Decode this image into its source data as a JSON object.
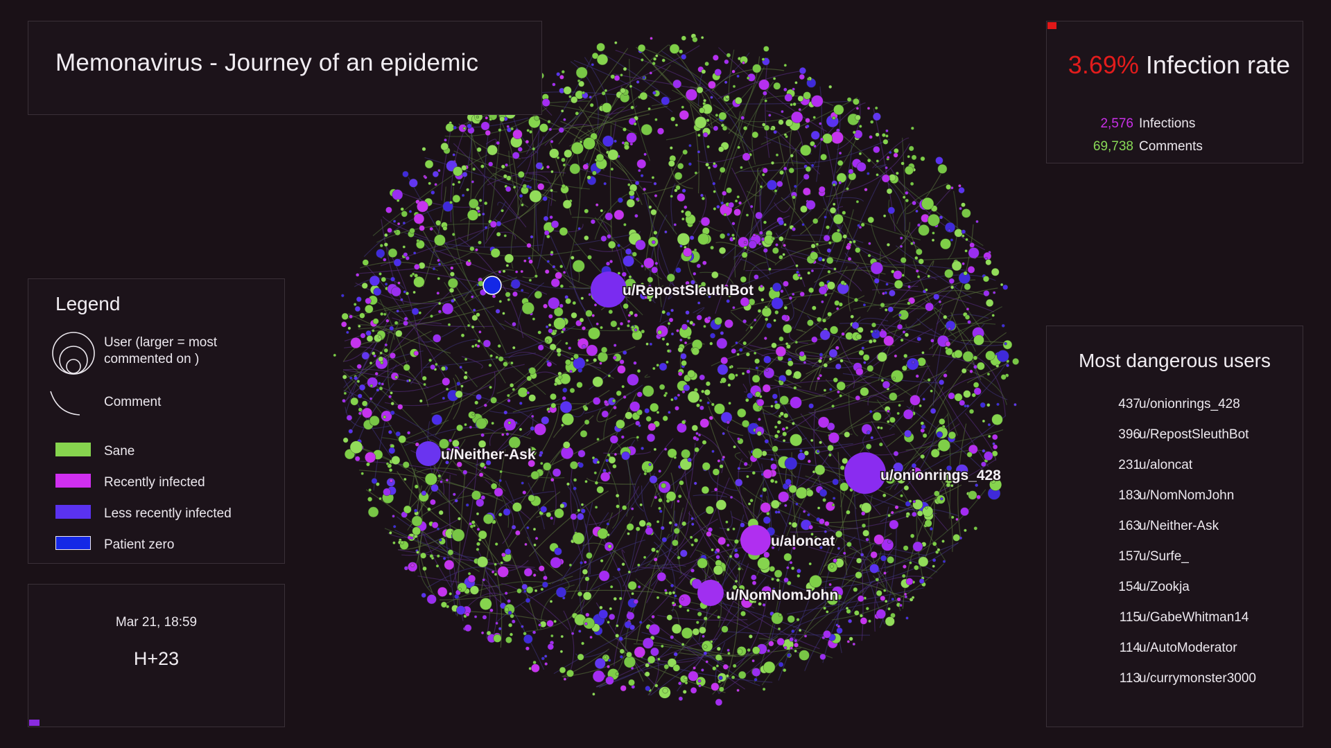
{
  "title": "Memonavirus - Journey of an epidemic",
  "stats": {
    "rate_value": "3.69%",
    "rate_label": "Infection rate",
    "rows": [
      {
        "value": "2,576",
        "label": "Infections",
        "color": "#c930e8"
      },
      {
        "value": "69,738",
        "label": "Comments",
        "color": "#88d957"
      }
    ]
  },
  "legend": {
    "heading": "Legend",
    "user_label": "User (larger = most commented on )",
    "comment_label": "Comment",
    "categories": [
      {
        "label": "Sane",
        "color": "#86d44e"
      },
      {
        "label": "Recently infected",
        "color": "#d02ff0"
      },
      {
        "label": "Less recently infected",
        "color": "#5a32f0"
      },
      {
        "label": "Patient zero",
        "color": "#1428e6"
      }
    ]
  },
  "timestamp": {
    "date": "Mar 21, 18:59",
    "hour": "H+23"
  },
  "dangerous": {
    "heading": "Most dangerous users",
    "users": [
      {
        "count": "437",
        "name": "u/onionrings_428"
      },
      {
        "count": "396",
        "name": "u/RepostSleuthBot"
      },
      {
        "count": "231",
        "name": "u/aloncat"
      },
      {
        "count": "183",
        "name": "u/NomNomJohn"
      },
      {
        "count": "163",
        "name": "u/Neither-Ask"
      },
      {
        "count": "157",
        "name": "u/Surfe_"
      },
      {
        "count": "154",
        "name": "u/Zookja"
      },
      {
        "count": "115",
        "name": "u/GabeWhitman14"
      },
      {
        "count": "114",
        "name": "u/AutoModerator"
      },
      {
        "count": "113",
        "name": "u/currymonster3000"
      }
    ]
  },
  "network": {
    "hubs": [
      {
        "label": "u/RepostSleuthBot",
        "color": "#7a2cf0"
      },
      {
        "label": "u/Neither-Ask",
        "color": "#6a34f0"
      },
      {
        "label": "u/onionrings_428",
        "color": "#8a2cf0"
      },
      {
        "label": "u/aloncat",
        "color": "#b02ff0"
      },
      {
        "label": "u/NomNomJohn",
        "color": "#a02ff0"
      }
    ]
  }
}
